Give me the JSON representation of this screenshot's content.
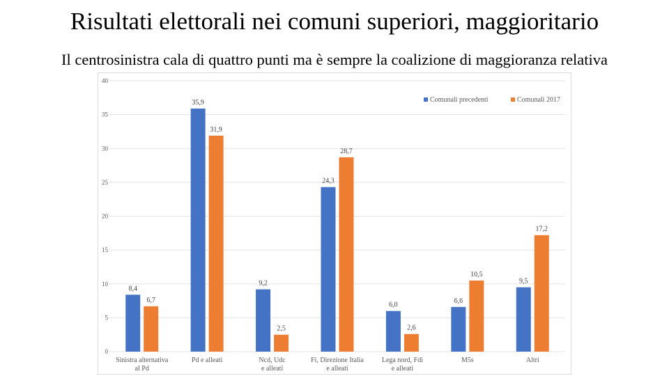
{
  "slide": {
    "title": "Risultati elettorali nei comuni superiori, maggioritario",
    "subtitle": "Il centrosinistra cala di quattro punti ma è sempre la coalizione di maggioranza relativa"
  },
  "chart_data": {
    "type": "bar",
    "title": "",
    "xlabel": "",
    "ylabel": "",
    "ylim": [
      0,
      40
    ],
    "yticks": [
      0,
      5,
      10,
      15,
      20,
      25,
      30,
      35,
      40
    ],
    "grid": true,
    "legend_position": "top-right",
    "categories": [
      [
        "Sinistra alternativa",
        "al Pd"
      ],
      [
        "Pd e alleati"
      ],
      [
        "Ncd, Udc",
        "e alleati"
      ],
      [
        "Fi, Direzione Italia",
        "e alleati"
      ],
      [
        "Lega nord, Fdi",
        "e alleati"
      ],
      [
        "M5s"
      ],
      [
        "Altri"
      ]
    ],
    "series": [
      {
        "name": "Comunali precedenti",
        "color": "#4472c4",
        "values": [
          8.4,
          35.9,
          9.2,
          24.3,
          6.0,
          6.6,
          9.5
        ],
        "labels": [
          "8,4",
          "35,9",
          "9,2",
          "24,3",
          "6,0",
          "6,6",
          "9,5"
        ]
      },
      {
        "name": "Comunali 2017",
        "color": "#ed7d31",
        "values": [
          6.7,
          31.9,
          2.5,
          28.7,
          2.6,
          10.5,
          17.2
        ],
        "labels": [
          "6,7",
          "31,9",
          "2,5",
          "28,7",
          "2,6",
          "10,5",
          "17,2"
        ]
      }
    ]
  }
}
